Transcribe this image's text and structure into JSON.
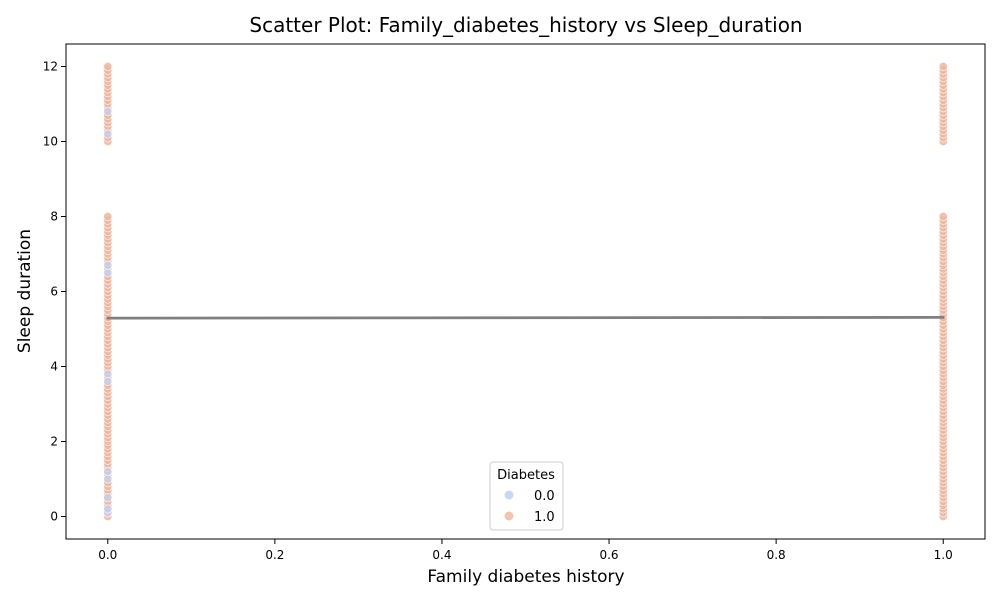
{
  "chart_data": {
    "type": "scatter",
    "title": "Scatter Plot: Family_diabetes_history vs Sleep_duration",
    "xlabel": "Family diabetes history",
    "ylabel": "Sleep duration",
    "xlim": [
      -0.05,
      1.05
    ],
    "ylim": [
      -0.6,
      12.6
    ],
    "xticks": [
      0.0,
      0.2,
      0.4,
      0.6,
      0.8,
      1.0
    ],
    "xtick_labels": [
      "0.0",
      "0.2",
      "0.4",
      "0.6",
      "0.8",
      "1.0"
    ],
    "yticks": [
      0,
      2,
      4,
      6,
      8,
      10,
      12
    ],
    "ytick_labels": [
      "0",
      "2",
      "4",
      "6",
      "8",
      "10",
      "12"
    ],
    "grid": false,
    "legend": {
      "title": "Diabetes",
      "placement": "lower-center",
      "entries": [
        {
          "label": "0.0",
          "color": "#c7d9f0"
        },
        {
          "label": "1.0",
          "color": "#f2c3ae"
        }
      ]
    },
    "series": [
      {
        "name": "0.0",
        "color": "#c9cde8",
        "x": [
          0,
          0,
          0,
          0,
          0,
          0,
          0,
          0,
          0,
          0,
          0
        ],
        "y": [
          0.1,
          0.5,
          1.0,
          3.8,
          6.5,
          6.7,
          10.2,
          10.8,
          0.2,
          1.2,
          3.6
        ]
      },
      {
        "name": "1.0",
        "color": "#eeb69f",
        "x": [],
        "y": []
      }
    ],
    "points_1_0": {
      "x0_y": [
        0.0,
        0.1,
        0.2,
        0.3,
        0.4,
        0.5,
        0.6,
        0.7,
        0.8,
        0.9,
        1.1,
        1.2,
        1.3,
        1.4,
        1.5,
        1.6,
        1.7,
        1.8,
        1.9,
        2.0,
        2.1,
        2.2,
        2.3,
        2.4,
        2.5,
        2.6,
        2.7,
        2.8,
        2.9,
        3.0,
        3.1,
        3.2,
        3.3,
        3.4,
        3.5,
        3.7,
        3.9,
        4.0,
        4.1,
        4.2,
        4.3,
        4.4,
        4.5,
        4.6,
        4.7,
        4.8,
        4.9,
        5.0,
        5.1,
        5.2,
        5.3,
        5.4,
        5.5,
        5.6,
        5.7,
        5.8,
        5.9,
        6.0,
        6.1,
        6.2,
        6.3,
        6.4,
        6.6,
        6.8,
        6.9,
        7.0,
        7.1,
        7.2,
        7.3,
        7.4,
        7.5,
        7.6,
        7.7,
        7.8,
        7.9,
        8.0,
        10.0,
        10.1,
        10.3,
        10.4,
        10.5,
        10.6,
        10.7,
        10.9,
        11.0,
        11.1,
        11.2,
        11.3,
        11.4,
        11.5,
        11.6,
        11.7,
        11.8,
        11.9,
        12.0
      ],
      "x1_y": [
        0.0,
        0.1,
        0.2,
        0.3,
        0.4,
        0.5,
        0.6,
        0.7,
        0.8,
        0.9,
        1.0,
        1.1,
        1.2,
        1.3,
        1.4,
        1.5,
        1.6,
        1.7,
        1.8,
        1.9,
        2.0,
        2.1,
        2.2,
        2.3,
        2.4,
        2.5,
        2.6,
        2.7,
        2.8,
        2.9,
        3.0,
        3.1,
        3.2,
        3.3,
        3.4,
        3.5,
        3.6,
        3.7,
        3.8,
        3.9,
        4.0,
        4.1,
        4.2,
        4.3,
        4.4,
        4.5,
        4.6,
        4.7,
        4.8,
        4.9,
        5.0,
        5.1,
        5.2,
        5.3,
        5.4,
        5.5,
        5.6,
        5.7,
        5.8,
        5.9,
        6.0,
        6.1,
        6.2,
        6.3,
        6.4,
        6.5,
        6.6,
        6.7,
        6.8,
        6.9,
        7.0,
        7.1,
        7.2,
        7.3,
        7.4,
        7.5,
        7.6,
        7.7,
        7.8,
        7.9,
        8.0,
        10.0,
        10.1,
        10.2,
        10.3,
        10.4,
        10.5,
        10.6,
        10.7,
        10.8,
        10.9,
        11.0,
        11.1,
        11.2,
        11.3,
        11.4,
        11.5,
        11.6,
        11.7,
        11.8,
        11.9,
        12.0
      ]
    },
    "trend_line": {
      "color": "#808080",
      "x": [
        0,
        1
      ],
      "y": [
        5.29,
        5.31
      ]
    }
  }
}
